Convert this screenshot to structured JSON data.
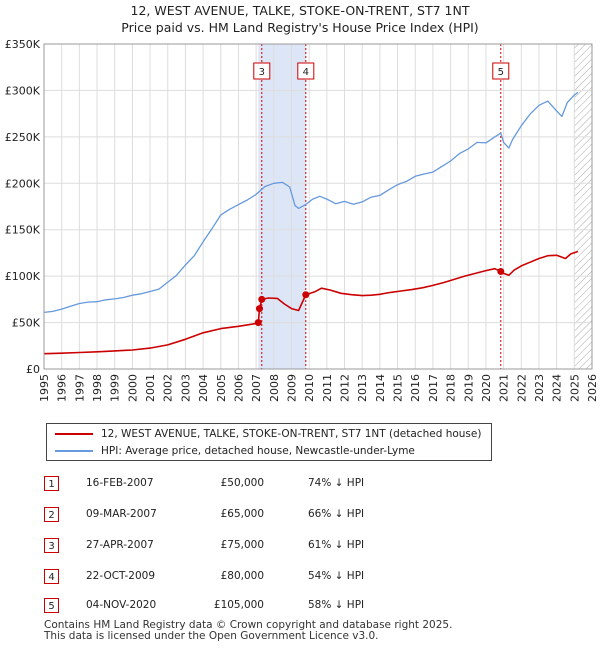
{
  "title": {
    "line1": "12, WEST AVENUE, TALKE, STOKE-ON-TRENT, ST7 1NT",
    "line2": "Price paid vs. HM Land Registry's House Price Index (HPI)"
  },
  "colors": {
    "property": "#cc0000",
    "hpi": "#6699dd",
    "shade": "#dde6f7",
    "grid": "#dddddd",
    "vline": "#cc0000"
  },
  "chart_data": {
    "type": "line",
    "ylim": [
      0,
      350000
    ],
    "xlim": [
      1995,
      2026
    ],
    "y_ticks": [
      {
        "value": 0,
        "label": "£0"
      },
      {
        "value": 50000,
        "label": "£50K"
      },
      {
        "value": 100000,
        "label": "£100K"
      },
      {
        "value": 150000,
        "label": "£150K"
      },
      {
        "value": 200000,
        "label": "£200K"
      },
      {
        "value": 250000,
        "label": "£250K"
      },
      {
        "value": 300000,
        "label": "£300K"
      },
      {
        "value": 350000,
        "label": "£350K"
      }
    ],
    "x_ticks": [
      "1995",
      "1996",
      "1997",
      "1998",
      "1999",
      "2000",
      "2001",
      "2002",
      "2003",
      "2004",
      "2005",
      "2006",
      "2007",
      "2008",
      "2009",
      "2010",
      "2011",
      "2012",
      "2013",
      "2014",
      "2015",
      "2016",
      "2017",
      "2018",
      "2019",
      "2020",
      "2021",
      "2022",
      "2023",
      "2024",
      "2025",
      "2026"
    ],
    "shaded_regions": [
      {
        "from": 2007.12,
        "to": 2009.81
      },
      {
        "from": 2025.0,
        "to": 2026.0,
        "hatched": true
      }
    ],
    "markers": [
      {
        "label": "3",
        "x": 2007.32
      },
      {
        "label": "4",
        "x": 2009.81
      },
      {
        "label": "5",
        "x": 2020.84
      }
    ],
    "sales": [
      {
        "x": 2007.12,
        "y": 50000
      },
      {
        "x": 2007.19,
        "y": 65000
      },
      {
        "x": 2007.32,
        "y": 75000
      },
      {
        "x": 2009.81,
        "y": 80000
      },
      {
        "x": 2020.84,
        "y": 105000
      }
    ],
    "series": [
      {
        "name": "12, WEST AVENUE, TALKE, STOKE-ON-TRENT, ST7 1NT (detached house)",
        "color": "#cc0000",
        "points": [
          [
            1995.0,
            16500
          ],
          [
            1996.0,
            17000
          ],
          [
            1997.0,
            17800
          ],
          [
            1998.0,
            18500
          ],
          [
            1999.0,
            19500
          ],
          [
            2000.0,
            20500
          ],
          [
            2001.0,
            22500
          ],
          [
            2002.0,
            26000
          ],
          [
            2003.0,
            32000
          ],
          [
            2004.0,
            39000
          ],
          [
            2005.0,
            43500
          ],
          [
            2006.0,
            46000
          ],
          [
            2007.0,
            49000
          ],
          [
            2007.12,
            50000
          ],
          [
            2007.19,
            65000
          ],
          [
            2007.32,
            75000
          ],
          [
            2007.7,
            76500
          ],
          [
            2008.2,
            76000
          ],
          [
            2008.6,
            70000
          ],
          [
            2009.0,
            65000
          ],
          [
            2009.4,
            63000
          ],
          [
            2009.81,
            80000
          ],
          [
            2010.3,
            83000
          ],
          [
            2010.7,
            87000
          ],
          [
            2011.2,
            85000
          ],
          [
            2011.8,
            81500
          ],
          [
            2012.4,
            80000
          ],
          [
            2013.0,
            79000
          ],
          [
            2013.5,
            79500
          ],
          [
            2014.0,
            80500
          ],
          [
            2014.6,
            82500
          ],
          [
            2015.2,
            84000
          ],
          [
            2015.8,
            85500
          ],
          [
            2016.4,
            87500
          ],
          [
            2017.0,
            90000
          ],
          [
            2017.6,
            93000
          ],
          [
            2018.2,
            96500
          ],
          [
            2018.8,
            100000
          ],
          [
            2019.4,
            103000
          ],
          [
            2020.0,
            106000
          ],
          [
            2020.5,
            108000
          ],
          [
            2020.84,
            105000
          ],
          [
            2021.0,
            103000
          ],
          [
            2021.3,
            101000
          ],
          [
            2021.6,
            106500
          ],
          [
            2022.0,
            111000
          ],
          [
            2022.5,
            115000
          ],
          [
            2023.0,
            119000
          ],
          [
            2023.5,
            122000
          ],
          [
            2024.0,
            122500
          ],
          [
            2024.5,
            119000
          ],
          [
            2024.8,
            124000
          ],
          [
            2025.2,
            126500
          ]
        ]
      },
      {
        "name": "HPI: Average price, detached house, Newcastle-under-Lyme",
        "color": "#6699dd",
        "points": [
          [
            1995.0,
            61000
          ],
          [
            1995.5,
            62000
          ],
          [
            1996.0,
            64500
          ],
          [
            1996.5,
            67500
          ],
          [
            1997.0,
            70500
          ],
          [
            1997.5,
            72000
          ],
          [
            1998.0,
            72500
          ],
          [
            1998.5,
            74500
          ],
          [
            1999.0,
            75500
          ],
          [
            1999.5,
            77000
          ],
          [
            2000.0,
            79500
          ],
          [
            2000.5,
            81000
          ],
          [
            2001.0,
            83500
          ],
          [
            2001.5,
            86000
          ],
          [
            2002.0,
            93500
          ],
          [
            2002.5,
            101000
          ],
          [
            2003.0,
            112000
          ],
          [
            2003.5,
            122000
          ],
          [
            2004.0,
            137000
          ],
          [
            2004.5,
            151000
          ],
          [
            2005.0,
            166000
          ],
          [
            2005.5,
            172000
          ],
          [
            2006.0,
            177000
          ],
          [
            2006.5,
            182000
          ],
          [
            2007.0,
            188000
          ],
          [
            2007.5,
            196500
          ],
          [
            2008.0,
            200000
          ],
          [
            2008.5,
            201000
          ],
          [
            2008.9,
            196000
          ],
          [
            2009.2,
            176000
          ],
          [
            2009.4,
            173000
          ],
          [
            2009.8,
            177000
          ],
          [
            2010.2,
            183000
          ],
          [
            2010.6,
            186000
          ],
          [
            2011.0,
            183000
          ],
          [
            2011.5,
            178000
          ],
          [
            2012.0,
            180500
          ],
          [
            2012.5,
            177500
          ],
          [
            2013.0,
            180000
          ],
          [
            2013.5,
            185000
          ],
          [
            2014.0,
            187000
          ],
          [
            2014.5,
            193000
          ],
          [
            2015.0,
            198500
          ],
          [
            2015.5,
            202000
          ],
          [
            2016.0,
            207500
          ],
          [
            2016.5,
            210000
          ],
          [
            2017.0,
            212000
          ],
          [
            2017.5,
            218000
          ],
          [
            2018.0,
            224000
          ],
          [
            2018.5,
            232000
          ],
          [
            2019.0,
            237000
          ],
          [
            2019.5,
            244000
          ],
          [
            2020.0,
            243500
          ],
          [
            2020.5,
            250000
          ],
          [
            2020.84,
            254000
          ],
          [
            2021.0,
            244000
          ],
          [
            2021.3,
            238000
          ],
          [
            2021.5,
            247000
          ],
          [
            2022.0,
            262000
          ],
          [
            2022.5,
            274500
          ],
          [
            2023.0,
            284000
          ],
          [
            2023.5,
            288500
          ],
          [
            2024.0,
            278000
          ],
          [
            2024.3,
            272000
          ],
          [
            2024.6,
            287000
          ],
          [
            2025.0,
            295000
          ],
          [
            2025.2,
            298000
          ]
        ]
      }
    ]
  },
  "legend": {
    "property_label": "12, WEST AVENUE, TALKE, STOKE-ON-TRENT, ST7 1NT (detached house)",
    "hpi_label": "HPI: Average price, detached house, Newcastle-under-Lyme"
  },
  "transactions": [
    {
      "num": "1",
      "date": "16-FEB-2007",
      "price": "£50,000",
      "hpi": "74% ↓ HPI"
    },
    {
      "num": "2",
      "date": "09-MAR-2007",
      "price": "£65,000",
      "hpi": "66% ↓ HPI"
    },
    {
      "num": "3",
      "date": "27-APR-2007",
      "price": "£75,000",
      "hpi": "61% ↓ HPI"
    },
    {
      "num": "4",
      "date": "22-OCT-2009",
      "price": "£80,000",
      "hpi": "54% ↓ HPI"
    },
    {
      "num": "5",
      "date": "04-NOV-2020",
      "price": "£105,000",
      "hpi": "58% ↓ HPI"
    }
  ],
  "footer": {
    "line1": "Contains HM Land Registry data © Crown copyright and database right 2025.",
    "line2": "This data is licensed under the Open Government Licence v3.0."
  }
}
